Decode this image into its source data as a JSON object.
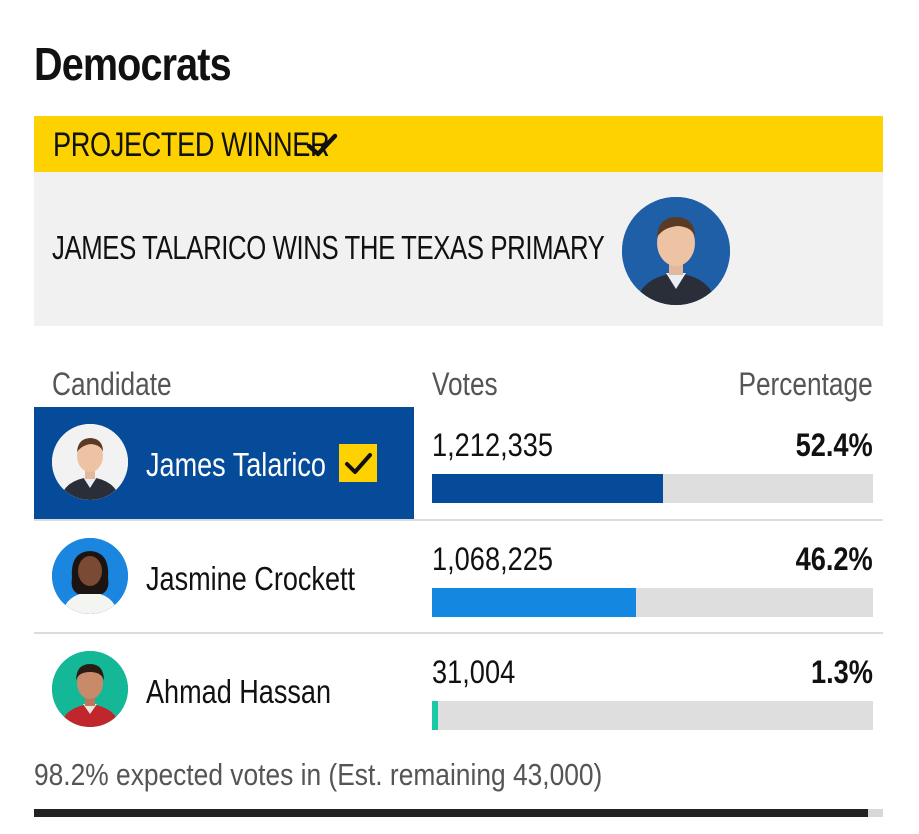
{
  "section": {
    "title": "Democrats"
  },
  "banner": {
    "label": "PROJECTED WINNER",
    "icon": "check-icon",
    "color": "#fdd200"
  },
  "winner_panel": {
    "headline": "JAMES TALARICO WINS THE TEXAS PRIMARY",
    "avatar_icon": "candidate-photo"
  },
  "table": {
    "headers": {
      "candidate": "Candidate",
      "votes": "Votes",
      "percentage": "Percentage"
    },
    "rows": [
      {
        "name": "James Talarico",
        "votes": "1,212,335",
        "percentage": "52.4%",
        "share": 52.4,
        "winner": true,
        "bar_color": "#064b99"
      },
      {
        "name": "Jasmine Crockett",
        "votes": "1,068,225",
        "percentage": "46.2%",
        "share": 46.2,
        "winner": false,
        "bar_color": "#1487e0"
      },
      {
        "name": "Ahmad Hassan",
        "votes": "31,004",
        "percentage": "1.3%",
        "share": 1.3,
        "winner": false,
        "bar_color": "#18c9a4"
      }
    ]
  },
  "footer": {
    "expected_votes": "98.2% expected votes in (Est. remaining 43,000)",
    "expected_fraction": 0.982
  },
  "colors": {
    "winner_blue": "#064b99",
    "accent_yellow": "#fdd200"
  }
}
